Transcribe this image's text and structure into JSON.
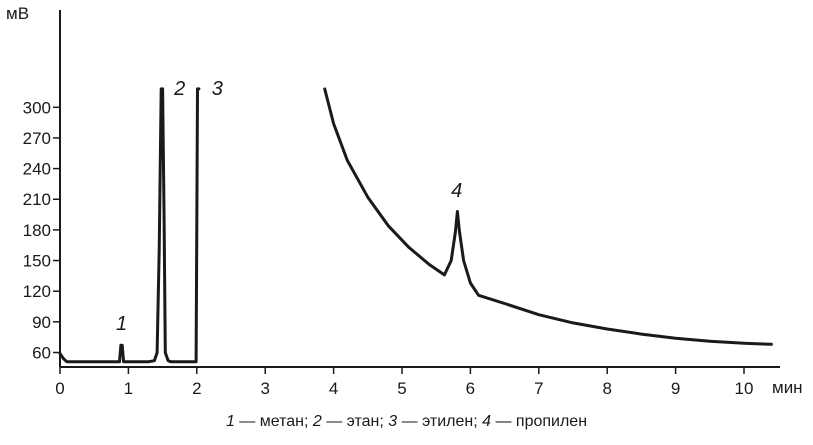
{
  "chart_data": {
    "type": "line",
    "title": "",
    "xlabel": "мин",
    "ylabel": "мВ",
    "xlim": [
      0,
      10.8
    ],
    "ylim": [
      45,
      318
    ],
    "x_ticks": [
      0,
      1,
      2,
      3,
      4,
      5,
      6,
      7,
      8,
      9,
      10
    ],
    "y_ticks": [
      60,
      90,
      120,
      150,
      180,
      210,
      240,
      270,
      300
    ],
    "grid": false,
    "line_color": "#1a1a1a",
    "series": [
      {
        "points": [
          [
            0,
            59
          ],
          [
            0.05,
            54
          ],
          [
            0.1,
            51
          ],
          [
            0.3,
            51
          ],
          [
            0.85,
            51
          ],
          [
            0.87,
            51
          ],
          [
            0.89,
            67
          ],
          [
            0.91,
            67
          ],
          [
            0.93,
            51
          ],
          [
            1.3,
            51
          ],
          [
            1.38,
            52
          ],
          [
            1.42,
            60
          ],
          [
            1.45,
            160
          ],
          [
            1.48,
            318
          ],
          [
            1.5,
            318
          ],
          [
            1.52,
            200
          ],
          [
            1.54,
            60
          ],
          [
            1.58,
            52
          ],
          [
            1.62,
            51
          ],
          [
            1.95,
            51
          ],
          [
            1.99,
            51
          ],
          [
            2.01,
            318
          ],
          [
            2.03,
            318
          ]
        ]
      },
      {
        "points": [
          [
            3.87,
            318
          ],
          [
            4.0,
            284
          ],
          [
            4.2,
            248
          ],
          [
            4.5,
            212
          ],
          [
            4.8,
            184
          ],
          [
            5.1,
            163
          ],
          [
            5.4,
            146
          ],
          [
            5.62,
            136
          ],
          [
            5.72,
            150
          ],
          [
            5.78,
            178
          ],
          [
            5.81,
            198
          ],
          [
            5.84,
            178
          ],
          [
            5.9,
            150
          ],
          [
            6.0,
            128
          ],
          [
            6.12,
            116
          ],
          [
            6.5,
            108
          ],
          [
            7.0,
            97
          ],
          [
            7.5,
            89
          ],
          [
            8.0,
            83
          ],
          [
            8.5,
            78
          ],
          [
            9.0,
            74
          ],
          [
            9.5,
            71
          ],
          [
            10.0,
            69
          ],
          [
            10.4,
            68
          ]
        ]
      }
    ],
    "peaks": [
      {
        "label": "1",
        "x": 0.9,
        "y": 82
      },
      {
        "label": "2",
        "x": 1.75,
        "y": 312
      },
      {
        "label": "3",
        "x": 2.3,
        "y": 312
      },
      {
        "label": "4",
        "x": 5.8,
        "y": 212
      }
    ]
  },
  "caption": {
    "items": [
      {
        "num": "1",
        "name": " — метан; "
      },
      {
        "num": "2",
        "name": " — этан; "
      },
      {
        "num": "3",
        "name": " — этилен; "
      },
      {
        "num": "4",
        "name": " — пропилен"
      }
    ]
  }
}
